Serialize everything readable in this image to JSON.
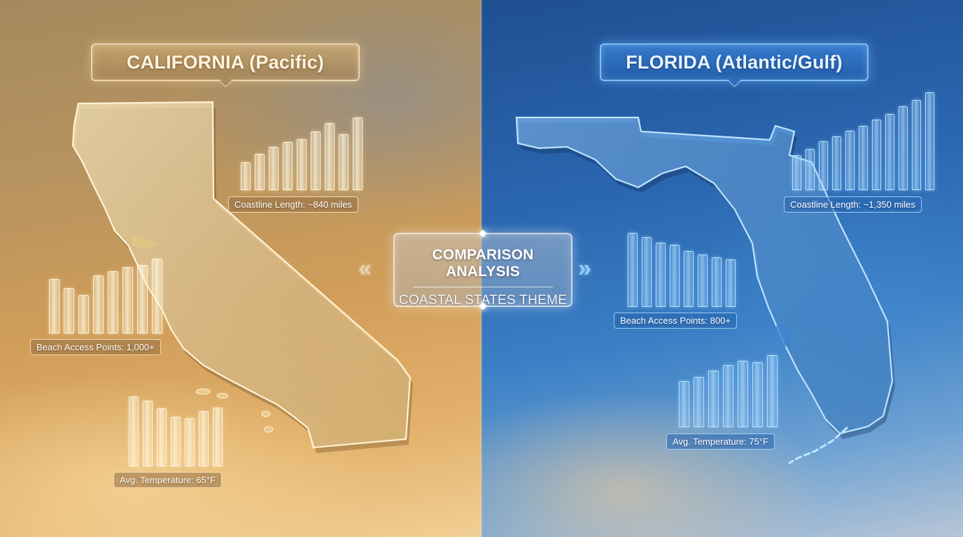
{
  "california": {
    "title": "CALIFORNIA (Pacific)",
    "stats": {
      "coastline": "Coastline Length: ~840 miles",
      "beach_access": "Beach Access Points: 1,000+",
      "temperature": "Avg. Temperature: 65°F"
    },
    "bar_charts": {
      "coastline": [
        0.38,
        0.5,
        0.6,
        0.66,
        0.7,
        0.81,
        0.92,
        0.77,
        1.0
      ],
      "beach_access": [
        0.73,
        0.61,
        0.51,
        0.78,
        0.83,
        0.89,
        0.92,
        1.0
      ],
      "temperature": [
        1.0,
        0.94,
        0.83,
        0.71,
        0.69,
        0.79,
        0.84
      ]
    }
  },
  "florida": {
    "title": "FLORIDA (Atlantic/Gulf)",
    "stats": {
      "coastline": "Coastline Length: ~1,350 miles",
      "beach_access": "Beach Access Points: 800+",
      "temperature": "Avg. Temperature: 75°F"
    },
    "bar_charts": {
      "coastline": [
        0.36,
        0.42,
        0.5,
        0.55,
        0.61,
        0.66,
        0.72,
        0.78,
        0.86,
        0.92,
        1.0
      ],
      "beach_access": [
        1.0,
        0.94,
        0.87,
        0.84,
        0.75,
        0.71,
        0.67,
        0.64
      ],
      "temperature": [
        0.64,
        0.7,
        0.79,
        0.86,
        0.92,
        0.9,
        1.0
      ]
    }
  },
  "center": {
    "title": "COMPARISON ANALYSIS",
    "subtitle": "COASTAL STATES THEME"
  },
  "colors": {
    "california_accent": "#f3d9a6",
    "florida_accent": "#8fcaff"
  }
}
